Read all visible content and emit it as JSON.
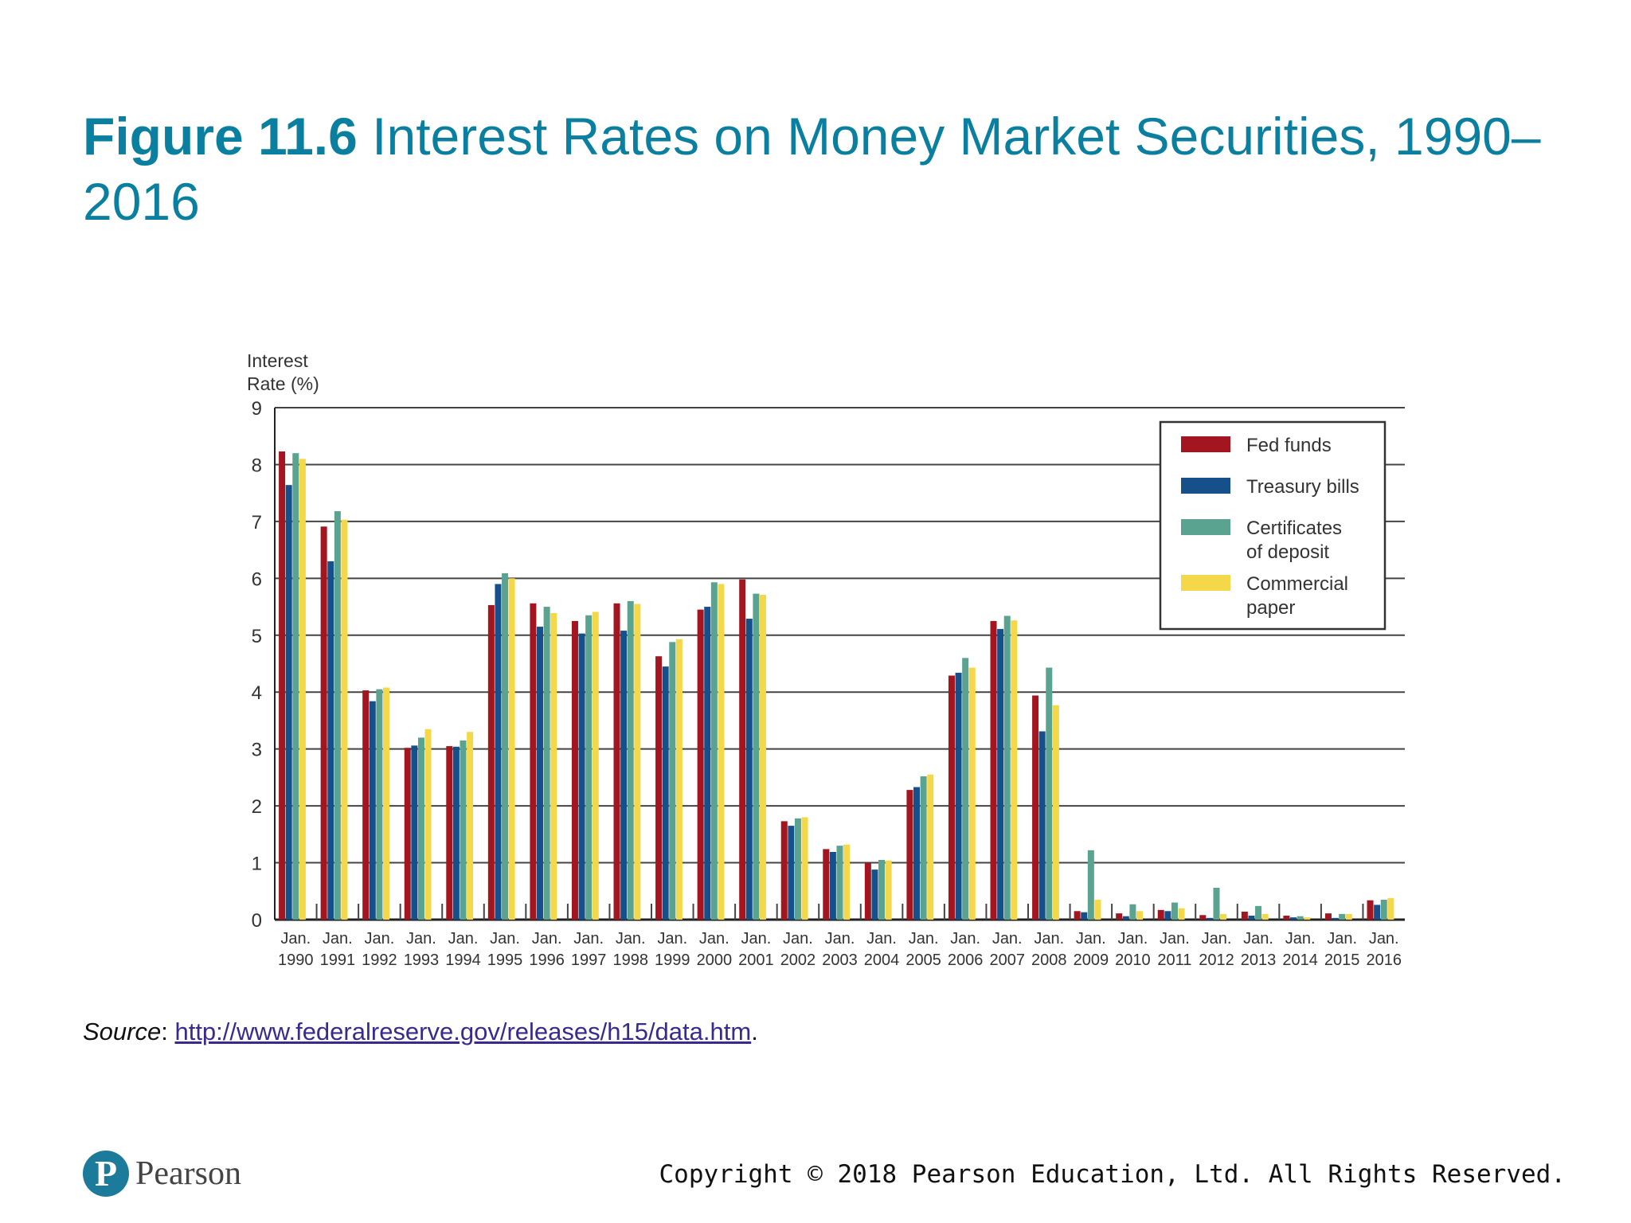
{
  "title": {
    "figure_label": "Figure 11.6",
    "text": "Interest Rates on Money Market Securities, 1990–2016"
  },
  "source": {
    "label": "Source",
    "url_text": "http://www.federalreserve.gov/releases/h15/data.htm"
  },
  "footer": {
    "logo_text": "Pearson",
    "copyright": "Copyright © 2018 Pearson Education, Ltd. All Rights Reserved."
  },
  "colors": {
    "title": "#0a7fa0",
    "fed_funds": "#a3151f",
    "treasury_bills": "#16508a",
    "certificates_of_deposit": "#5aa391",
    "commercial_paper": "#f5d84a",
    "gridline": "#444444"
  },
  "chart_data": {
    "type": "bar",
    "ylabel_lines": [
      "Interest",
      "Rate (%)"
    ],
    "ylim": [
      0,
      9
    ],
    "yticks": [
      0,
      1,
      2,
      3,
      4,
      5,
      6,
      7,
      8,
      9
    ],
    "grid": true,
    "legend_placement": "top-right",
    "categories": [
      [
        "Jan.",
        "1990"
      ],
      [
        "Jan.",
        "1991"
      ],
      [
        "Jan.",
        "1992"
      ],
      [
        "Jan.",
        "1993"
      ],
      [
        "Jan.",
        "1994"
      ],
      [
        "Jan.",
        "1995"
      ],
      [
        "Jan.",
        "1996"
      ],
      [
        "Jan.",
        "1997"
      ],
      [
        "Jan.",
        "1998"
      ],
      [
        "Jan.",
        "1999"
      ],
      [
        "Jan.",
        "2000"
      ],
      [
        "Jan.",
        "2001"
      ],
      [
        "Jan.",
        "2002"
      ],
      [
        "Jan.",
        "2003"
      ],
      [
        "Jan.",
        "2004"
      ],
      [
        "Jan.",
        "2005"
      ],
      [
        "Jan.",
        "2006"
      ],
      [
        "Jan.",
        "2007"
      ],
      [
        "Jan.",
        "2008"
      ],
      [
        "Jan.",
        "2009"
      ],
      [
        "Jan.",
        "2010"
      ],
      [
        "Jan.",
        "2011"
      ],
      [
        "Jan.",
        "2012"
      ],
      [
        "Jan.",
        "2013"
      ],
      [
        "Jan.",
        "2014"
      ],
      [
        "Jan.",
        "2015"
      ],
      [
        "Jan.",
        "2016"
      ]
    ],
    "series": [
      {
        "name_lines": [
          "Fed funds"
        ],
        "color": "#a3151f",
        "values": [
          8.23,
          6.91,
          4.03,
          3.02,
          3.05,
          5.53,
          5.56,
          5.25,
          5.56,
          4.63,
          5.45,
          5.98,
          1.73,
          1.24,
          1.0,
          2.28,
          4.29,
          5.25,
          3.94,
          0.15,
          0.11,
          0.17,
          0.08,
          0.14,
          0.07,
          0.11,
          0.34
        ]
      },
      {
        "name_lines": [
          "Treasury bills"
        ],
        "color": "#16508a",
        "values": [
          7.64,
          6.3,
          3.84,
          3.06,
          3.04,
          5.9,
          5.15,
          5.03,
          5.08,
          4.45,
          5.5,
          5.29,
          1.65,
          1.19,
          0.88,
          2.33,
          4.34,
          5.11,
          3.31,
          0.13,
          0.06,
          0.15,
          0.03,
          0.07,
          0.04,
          0.03,
          0.26
        ]
      },
      {
        "name_lines": [
          "Certificates",
          "of deposit"
        ],
        "color": "#5aa391",
        "values": [
          8.2,
          7.18,
          4.05,
          3.2,
          3.15,
          6.09,
          5.5,
          5.35,
          5.6,
          4.88,
          5.93,
          5.73,
          1.78,
          1.3,
          1.05,
          2.52,
          4.6,
          5.34,
          4.43,
          1.22,
          0.27,
          0.3,
          0.56,
          0.24,
          0.06,
          0.1,
          0.35
        ]
      },
      {
        "name_lines": [
          "Commercial",
          "paper"
        ],
        "color": "#f5d84a",
        "values": [
          8.1,
          7.03,
          4.08,
          3.35,
          3.3,
          6.0,
          5.39,
          5.41,
          5.55,
          4.93,
          5.9,
          5.71,
          1.8,
          1.32,
          1.04,
          2.55,
          4.43,
          5.26,
          3.77,
          0.35,
          0.15,
          0.2,
          0.1,
          0.1,
          0.04,
          0.1,
          0.38
        ]
      }
    ]
  }
}
